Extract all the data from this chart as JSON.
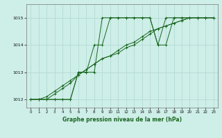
{
  "title": "Graphe pression niveau de la mer (hPa)",
  "bg_color": "#ceeee8",
  "line_color": "#1a6620",
  "grid_color": "#aed8d0",
  "x_min": 0,
  "x_max": 23,
  "y_min": 1011.7,
  "y_max": 1015.5,
  "yticks": [
    1012,
    1013,
    1014,
    1015
  ],
  "xticks": [
    0,
    1,
    2,
    3,
    4,
    5,
    6,
    7,
    8,
    9,
    10,
    11,
    12,
    13,
    14,
    15,
    16,
    17,
    18,
    19,
    20,
    21,
    22,
    23
  ],
  "series": [
    [
      1012.0,
      1012.0,
      1012.0,
      1012.0,
      1012.0,
      1012.0,
      1013.0,
      1013.0,
      1014.0,
      1014.0,
      1015.0,
      1015.0,
      1015.0,
      1015.0,
      1015.0,
      1015.0,
      1014.0,
      1014.0,
      1015.0,
      1015.0,
      1015.0,
      1015.0,
      1015.0,
      1015.0
    ],
    [
      1012.0,
      1012.0,
      1012.0,
      1012.0,
      1012.0,
      1012.0,
      1013.0,
      1013.0,
      1013.0,
      1015.0,
      1015.0,
      1015.0,
      1015.0,
      1015.0,
      1015.0,
      1015.0,
      1014.0,
      1015.0,
      1015.0,
      1015.0,
      1015.0,
      1015.0,
      1015.0,
      1015.0
    ],
    [
      1012.0,
      1012.0,
      1012.0,
      1012.2,
      1012.4,
      1012.6,
      1012.9,
      1013.1,
      1013.3,
      1013.5,
      1013.6,
      1013.8,
      1014.0,
      1014.1,
      1014.3,
      1014.5,
      1014.6,
      1014.7,
      1014.8,
      1014.9,
      1015.0,
      1015.0,
      1015.0,
      1015.0
    ],
    [
      1012.0,
      1012.0,
      1012.1,
      1012.3,
      1012.5,
      1012.7,
      1012.9,
      1013.1,
      1013.3,
      1013.5,
      1013.6,
      1013.7,
      1013.9,
      1014.0,
      1014.2,
      1014.4,
      1014.6,
      1014.7,
      1014.8,
      1014.9,
      1015.0,
      1015.0,
      1015.0,
      1015.0
    ]
  ]
}
